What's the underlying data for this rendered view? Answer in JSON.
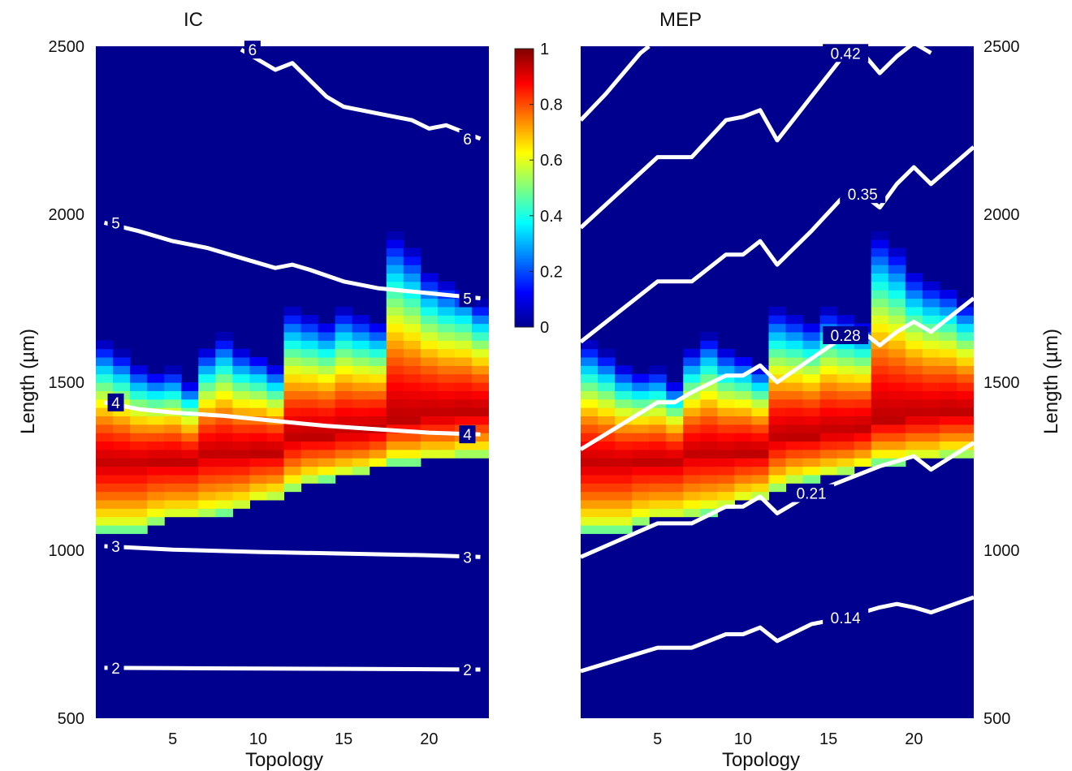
{
  "chart_data": [
    {
      "type": "heatmap",
      "title": "IC",
      "xlabel": "Topology",
      "ylabel": "Length (µm)",
      "xlim": [
        0.5,
        23.5
      ],
      "ylim": [
        500,
        2500
      ],
      "xticks": [
        5,
        10,
        15,
        20
      ],
      "yticks": [
        500,
        1000,
        1500,
        2000,
        2500
      ],
      "heatmap_summary": {
        "x": [
          1,
          2,
          3,
          4,
          5,
          6,
          7,
          8,
          9,
          10,
          11,
          12,
          13,
          14,
          15,
          16,
          17,
          18,
          19,
          20,
          21,
          22,
          23
        ],
        "center_length": [
          1240,
          1240,
          1240,
          1250,
          1250,
          1250,
          1270,
          1270,
          1270,
          1280,
          1280,
          1320,
          1330,
          1330,
          1340,
          1340,
          1350,
          1380,
          1380,
          1390,
          1390,
          1400,
          1400
        ],
        "lower_edge": [
          1060,
          1060,
          1060,
          1080,
          1090,
          1090,
          1100,
          1110,
          1120,
          1140,
          1150,
          1180,
          1200,
          1210,
          1220,
          1230,
          1240,
          1260,
          1260,
          1270,
          1270,
          1280,
          1280
        ],
        "upper_edge": [
          1620,
          1590,
          1550,
          1530,
          1540,
          1500,
          1600,
          1640,
          1600,
          1580,
          1550,
          1720,
          1700,
          1680,
          1720,
          1700,
          1680,
          1940,
          1900,
          1830,
          1800,
          1780,
          1740
        ]
      },
      "contours": [
        {
          "label": "2",
          "x": [
            1,
            5,
            10,
            15,
            20,
            23
          ],
          "y": [
            650,
            649,
            648,
            647,
            646,
            645
          ]
        },
        {
          "label": "3",
          "x": [
            1,
            5,
            10,
            15,
            20,
            23
          ],
          "y": [
            1012,
            1002,
            995,
            990,
            985,
            980
          ]
        },
        {
          "label": "4",
          "x": [
            1,
            3,
            5,
            8,
            11,
            14,
            17,
            20,
            23
          ],
          "y": [
            1440,
            1420,
            1410,
            1400,
            1385,
            1370,
            1360,
            1350,
            1345
          ]
        },
        {
          "label": "5",
          "x": [
            1,
            3,
            5,
            7,
            9,
            11,
            12,
            13,
            15,
            17,
            19,
            21,
            23
          ],
          "y": [
            1975,
            1950,
            1920,
            1900,
            1870,
            1840,
            1850,
            1835,
            1800,
            1780,
            1770,
            1760,
            1750
          ]
        },
        {
          "label": "6",
          "x": [
            9,
            11,
            12,
            13,
            14,
            15,
            17,
            19,
            20,
            21,
            23
          ],
          "y": [
            2490,
            2430,
            2450,
            2400,
            2350,
            2320,
            2300,
            2280,
            2255,
            2265,
            2225
          ]
        }
      ]
    },
    {
      "type": "heatmap",
      "title": "MEP",
      "xlabel": "Topology",
      "ylabel": "Length (µm)",
      "xlim": [
        0.5,
        23.5
      ],
      "ylim": [
        500,
        2500
      ],
      "xticks": [
        5,
        10,
        15,
        20
      ],
      "yticks": [
        500,
        1000,
        1500,
        2000,
        2500
      ],
      "heatmap_summary": {
        "x": [
          1,
          2,
          3,
          4,
          5,
          6,
          7,
          8,
          9,
          10,
          11,
          12,
          13,
          14,
          15,
          16,
          17,
          18,
          19,
          20,
          21,
          22,
          23
        ],
        "center_length": [
          1240,
          1240,
          1240,
          1250,
          1250,
          1250,
          1270,
          1270,
          1270,
          1280,
          1280,
          1320,
          1330,
          1330,
          1340,
          1340,
          1350,
          1380,
          1380,
          1390,
          1390,
          1400,
          1400
        ],
        "lower_edge": [
          1060,
          1060,
          1060,
          1080,
          1090,
          1090,
          1100,
          1110,
          1120,
          1140,
          1150,
          1180,
          1200,
          1210,
          1220,
          1230,
          1240,
          1260,
          1260,
          1270,
          1270,
          1280,
          1280
        ],
        "upper_edge": [
          1620,
          1590,
          1550,
          1530,
          1540,
          1500,
          1600,
          1640,
          1600,
          1580,
          1550,
          1720,
          1700,
          1680,
          1720,
          1700,
          1680,
          1940,
          1900,
          1830,
          1800,
          1780,
          1740
        ]
      },
      "contours": [
        {
          "label": "0.14",
          "x": [
            0.5,
            5,
            7,
            9,
            10,
            11,
            12,
            14,
            16,
            18,
            19,
            20,
            21,
            23.5
          ],
          "y": [
            640,
            710,
            710,
            750,
            750,
            770,
            730,
            780,
            800,
            830,
            840,
            830,
            815,
            860
          ]
        },
        {
          "label": "0.21",
          "x": [
            0.5,
            5,
            7,
            9,
            10,
            11,
            12,
            14,
            16,
            18,
            20,
            21,
            23.5
          ],
          "y": [
            980,
            1080,
            1080,
            1130,
            1130,
            1160,
            1110,
            1170,
            1210,
            1250,
            1280,
            1240,
            1320
          ]
        },
        {
          "label": "0.28",
          "x": [
            0.5,
            5,
            6,
            7,
            9,
            10,
            11,
            12,
            14,
            16,
            17,
            18,
            19,
            20,
            21,
            23.5
          ],
          "y": [
            1300,
            1440,
            1440,
            1470,
            1520,
            1520,
            1550,
            1500,
            1570,
            1640,
            1650,
            1610,
            1650,
            1680,
            1650,
            1750
          ]
        },
        {
          "label": "0.35",
          "x": [
            0.5,
            5,
            7,
            9,
            10,
            11,
            12,
            14,
            16,
            17,
            18,
            19,
            20,
            21,
            23.5
          ],
          "y": [
            1620,
            1800,
            1800,
            1880,
            1880,
            1920,
            1850,
            1950,
            2060,
            2060,
            2020,
            2090,
            2140,
            2090,
            2200
          ]
        },
        {
          "label": "0.42",
          "x": [
            0.5,
            5,
            7,
            9,
            10,
            11,
            12,
            14,
            16,
            17,
            18,
            19,
            20,
            21
          ],
          "y": [
            1960,
            2170,
            2170,
            2280,
            2290,
            2310,
            2220,
            2350,
            2480,
            2480,
            2420,
            2470,
            2510,
            2480
          ]
        },
        {
          "label": "",
          "x": [
            0.5,
            2,
            3,
            4,
            4.5
          ],
          "y": [
            2280,
            2360,
            2420,
            2480,
            2500
          ]
        }
      ]
    }
  ],
  "colorbar": {
    "colormap": "jet",
    "ticks": [
      "0",
      "0.2",
      "0.4",
      "0.6",
      "0.8",
      "1"
    ]
  },
  "colors": {
    "background_deep": "#00008f",
    "contour": "#ffffff"
  }
}
